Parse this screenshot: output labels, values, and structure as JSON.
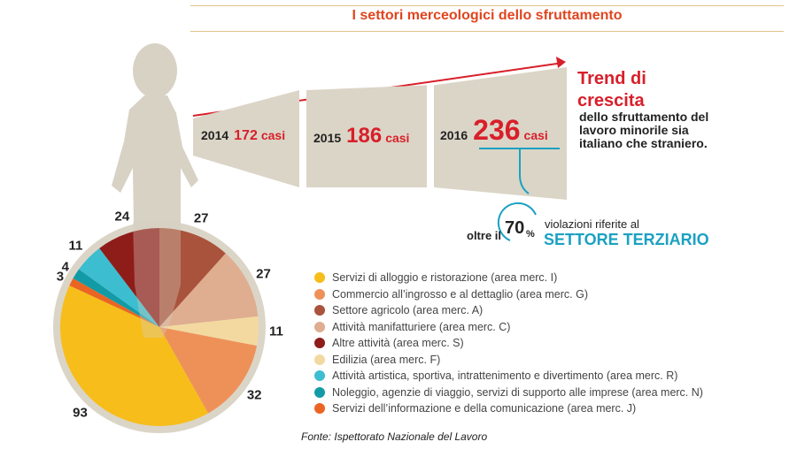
{
  "title": "I settori merceologici dello sfruttamento",
  "trend": {
    "title": "Trend di crescita",
    "subtitle": "dello sfruttamento del lavoro minorile sia italiano che straniero.",
    "panels": [
      {
        "year": "2014",
        "number": "172",
        "unit": "casi"
      },
      {
        "year": "2015",
        "number": "186",
        "unit": "casi"
      },
      {
        "year": "2016",
        "number": "236",
        "unit": "casi"
      }
    ]
  },
  "percent": {
    "prefix": "oltre il",
    "value": "70",
    "sign": "%",
    "description": "violazioni riferite al",
    "sector": "SETTORE TERZIARIO"
  },
  "chart_data": [
    {
      "type": "bar",
      "categories": [
        "2014",
        "2015",
        "2016"
      ],
      "values": [
        172,
        186,
        236
      ]
    },
    {
      "type": "pie",
      "labels": [
        "Servizi di alloggio e ristorazione (area merc. I)",
        "Commercio all’ingrosso e al dettaglio (area merc. G)",
        "Settore agricolo (area merc. A)",
        "Attività manifatturiere (area merc. C)",
        "Altre attività (area merc. S)",
        "Edilizia (area merc. F)",
        "Attività artistica, sportiva, intrattenimento e divertimento (area merc. R)",
        "Noleggio, agenzie di viaggio, servizi di supporto alle imprese (area merc. N)",
        "Servizi dell’informazione e della comunicazione (area merc. J)"
      ],
      "values": [
        93,
        32,
        27,
        27,
        24,
        11,
        11,
        4,
        3
      ],
      "colors": [
        "#f7bd1b",
        "#ee9159",
        "#a9533c",
        "#dfad90",
        "#8e1c19",
        "#f3d9a0",
        "#3dbdd0",
        "#129ba6",
        "#ea6524"
      ]
    }
  ],
  "source": "Fonte: Ispettorato Nazionale del Lavoro"
}
